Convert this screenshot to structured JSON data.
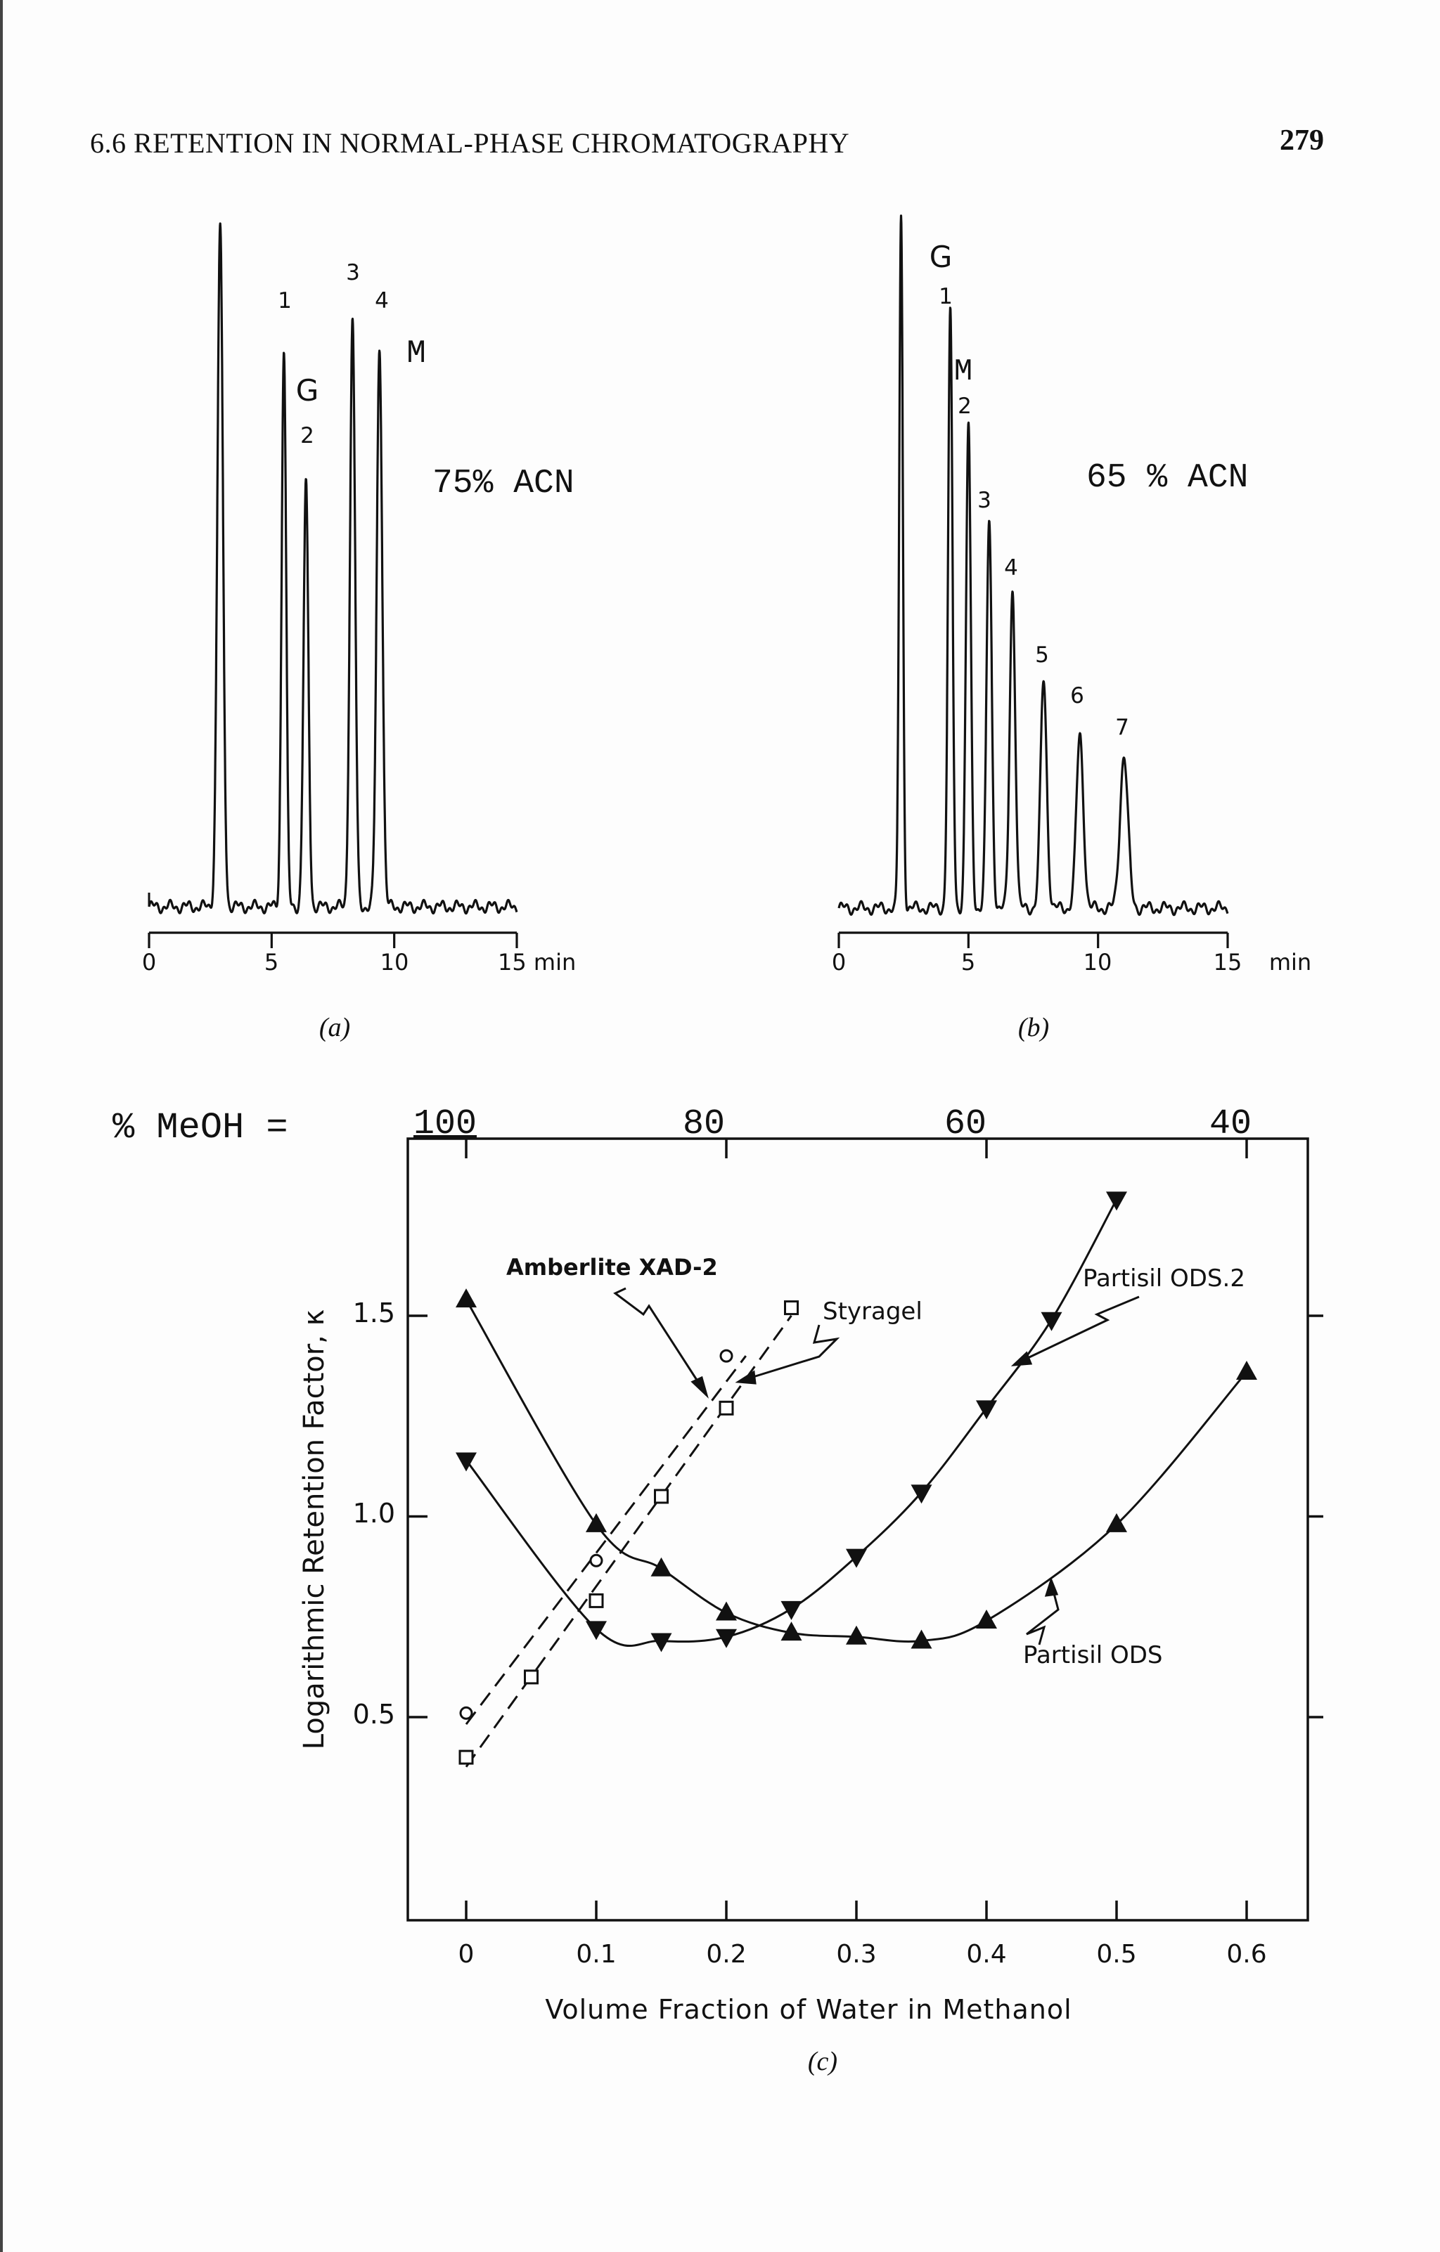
{
  "header": {
    "section_title": "6.6 RETENTION IN NORMAL-PHASE CHROMATOGRAPHY",
    "page_number": "279"
  },
  "chart_data": [
    {
      "type": "line",
      "panel": "(a)",
      "annotation": "75% ACN",
      "x_ticks": [
        "0",
        "5",
        "10"
      ],
      "x_tick_last": "15 min",
      "xlim": [
        0,
        15
      ],
      "peak_labels": [
        {
          "text": "1",
          "x": 5.5
        },
        {
          "text": "G",
          "x": 6.0
        },
        {
          "text": "2",
          "x": 6.0
        },
        {
          "text": "3",
          "x": 7.9
        },
        {
          "text": "4",
          "x": 9.2
        },
        {
          "text": "M",
          "x": 10.3
        }
      ],
      "peaks": [
        {
          "t": 2.9,
          "h": 1.0,
          "w": 0.16
        },
        {
          "t": 5.5,
          "h": 0.82,
          "w": 0.13
        },
        {
          "t": 6.4,
          "h": 0.62,
          "w": 0.14
        },
        {
          "t": 8.3,
          "h": 0.86,
          "w": 0.15
        },
        {
          "t": 9.4,
          "h": 0.82,
          "w": 0.16
        }
      ]
    },
    {
      "type": "line",
      "panel": "(b)",
      "annotation": "65 % ACN",
      "x_ticks": [
        "0",
        "5",
        "10",
        "15"
      ],
      "x_unit": "min",
      "xlim": [
        0,
        15
      ],
      "peak_labels": [
        {
          "text": "G",
          "x": 4.3
        },
        {
          "text": "1",
          "x": 4.3
        },
        {
          "text": "M",
          "x": 5.0
        },
        {
          "text": "2",
          "x": 5.0
        },
        {
          "text": "3",
          "x": 5.7
        },
        {
          "text": "4",
          "x": 6.7
        },
        {
          "text": "5",
          "x": 7.9
        },
        {
          "text": "6",
          "x": 9.3
        },
        {
          "text": "7",
          "x": 11.0
        }
      ],
      "peaks": [
        {
          "t": 2.4,
          "h": 1.0,
          "w": 0.1
        },
        {
          "t": 4.3,
          "h": 0.86,
          "w": 0.12
        },
        {
          "t": 5.0,
          "h": 0.7,
          "w": 0.13
        },
        {
          "t": 5.8,
          "h": 0.56,
          "w": 0.14
        },
        {
          "t": 6.7,
          "h": 0.46,
          "w": 0.15
        },
        {
          "t": 7.9,
          "h": 0.33,
          "w": 0.17
        },
        {
          "t": 9.3,
          "h": 0.25,
          "w": 0.19
        },
        {
          "t": 11.0,
          "h": 0.22,
          "w": 0.22
        }
      ]
    },
    {
      "type": "scatter",
      "panel": "(c)",
      "xlabel": "Volume Fraction of Water in Methanol",
      "ylabel": "Logarithmic Retention Factor, κ",
      "top_axis_label": "% MeOH =",
      "top_ticks": [
        "100",
        "80",
        "60",
        "40"
      ],
      "x_ticks": [
        "0",
        "0.1",
        "0.2",
        "0.3",
        "0.4",
        "0.5",
        "0.6"
      ],
      "y_ticks": [
        "0.5",
        "1.0",
        "1.5"
      ],
      "xlim": [
        -0.025,
        0.61
      ],
      "ylim": [
        0.0,
        1.9
      ],
      "series": [
        {
          "name": "Amberlite XAD-2",
          "marker": "circle",
          "style": "dashed",
          "x": [
            0.0,
            0.1,
            0.15,
            0.2
          ],
          "y": [
            0.51,
            0.89,
            1.05,
            1.4
          ]
        },
        {
          "name": "Styragel",
          "marker": "square",
          "style": "dashed",
          "x": [
            0.0,
            0.05,
            0.1,
            0.15,
            0.2,
            0.25
          ],
          "y": [
            0.4,
            0.6,
            0.79,
            1.05,
            1.27,
            1.52
          ]
        },
        {
          "name": "Partisil ODS.2",
          "marker": "triangle-down",
          "style": "solid",
          "x": [
            0.0,
            0.1,
            0.15,
            0.2,
            0.25,
            0.3,
            0.35,
            0.4,
            0.45,
            0.5
          ],
          "y": [
            1.14,
            0.72,
            0.69,
            0.7,
            0.77,
            0.9,
            1.06,
            1.27,
            1.49,
            1.79
          ]
        },
        {
          "name": "Partisil ODS",
          "marker": "triangle-up",
          "style": "solid",
          "x": [
            0.0,
            0.1,
            0.15,
            0.2,
            0.25,
            0.3,
            0.35,
            0.4,
            0.5,
            0.6
          ],
          "y": [
            1.54,
            0.98,
            0.87,
            0.76,
            0.71,
            0.7,
            0.69,
            0.74,
            0.98,
            1.36
          ]
        }
      ]
    }
  ]
}
